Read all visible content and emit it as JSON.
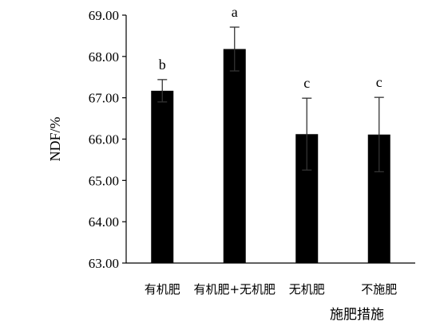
{
  "chart_data": {
    "type": "bar",
    "title": "",
    "xlabel": "施肥措施",
    "ylabel": "NDF/%",
    "categories": [
      "有机肥",
      "有机肥+无机肥",
      "无机肥",
      "不施肥"
    ],
    "values": [
      67.17,
      68.18,
      66.12,
      66.11
    ],
    "error": [
      0.27,
      0.53,
      0.87,
      0.9
    ],
    "significance": [
      "b",
      "a",
      "c",
      "c"
    ],
    "ylim": [
      63.0,
      69.0
    ],
    "yticks": [
      "63.00",
      "64.00",
      "65.00",
      "66.00",
      "67.00",
      "68.00",
      "69.00"
    ],
    "grid": false,
    "legend": "none",
    "bar_color": "#000000"
  }
}
